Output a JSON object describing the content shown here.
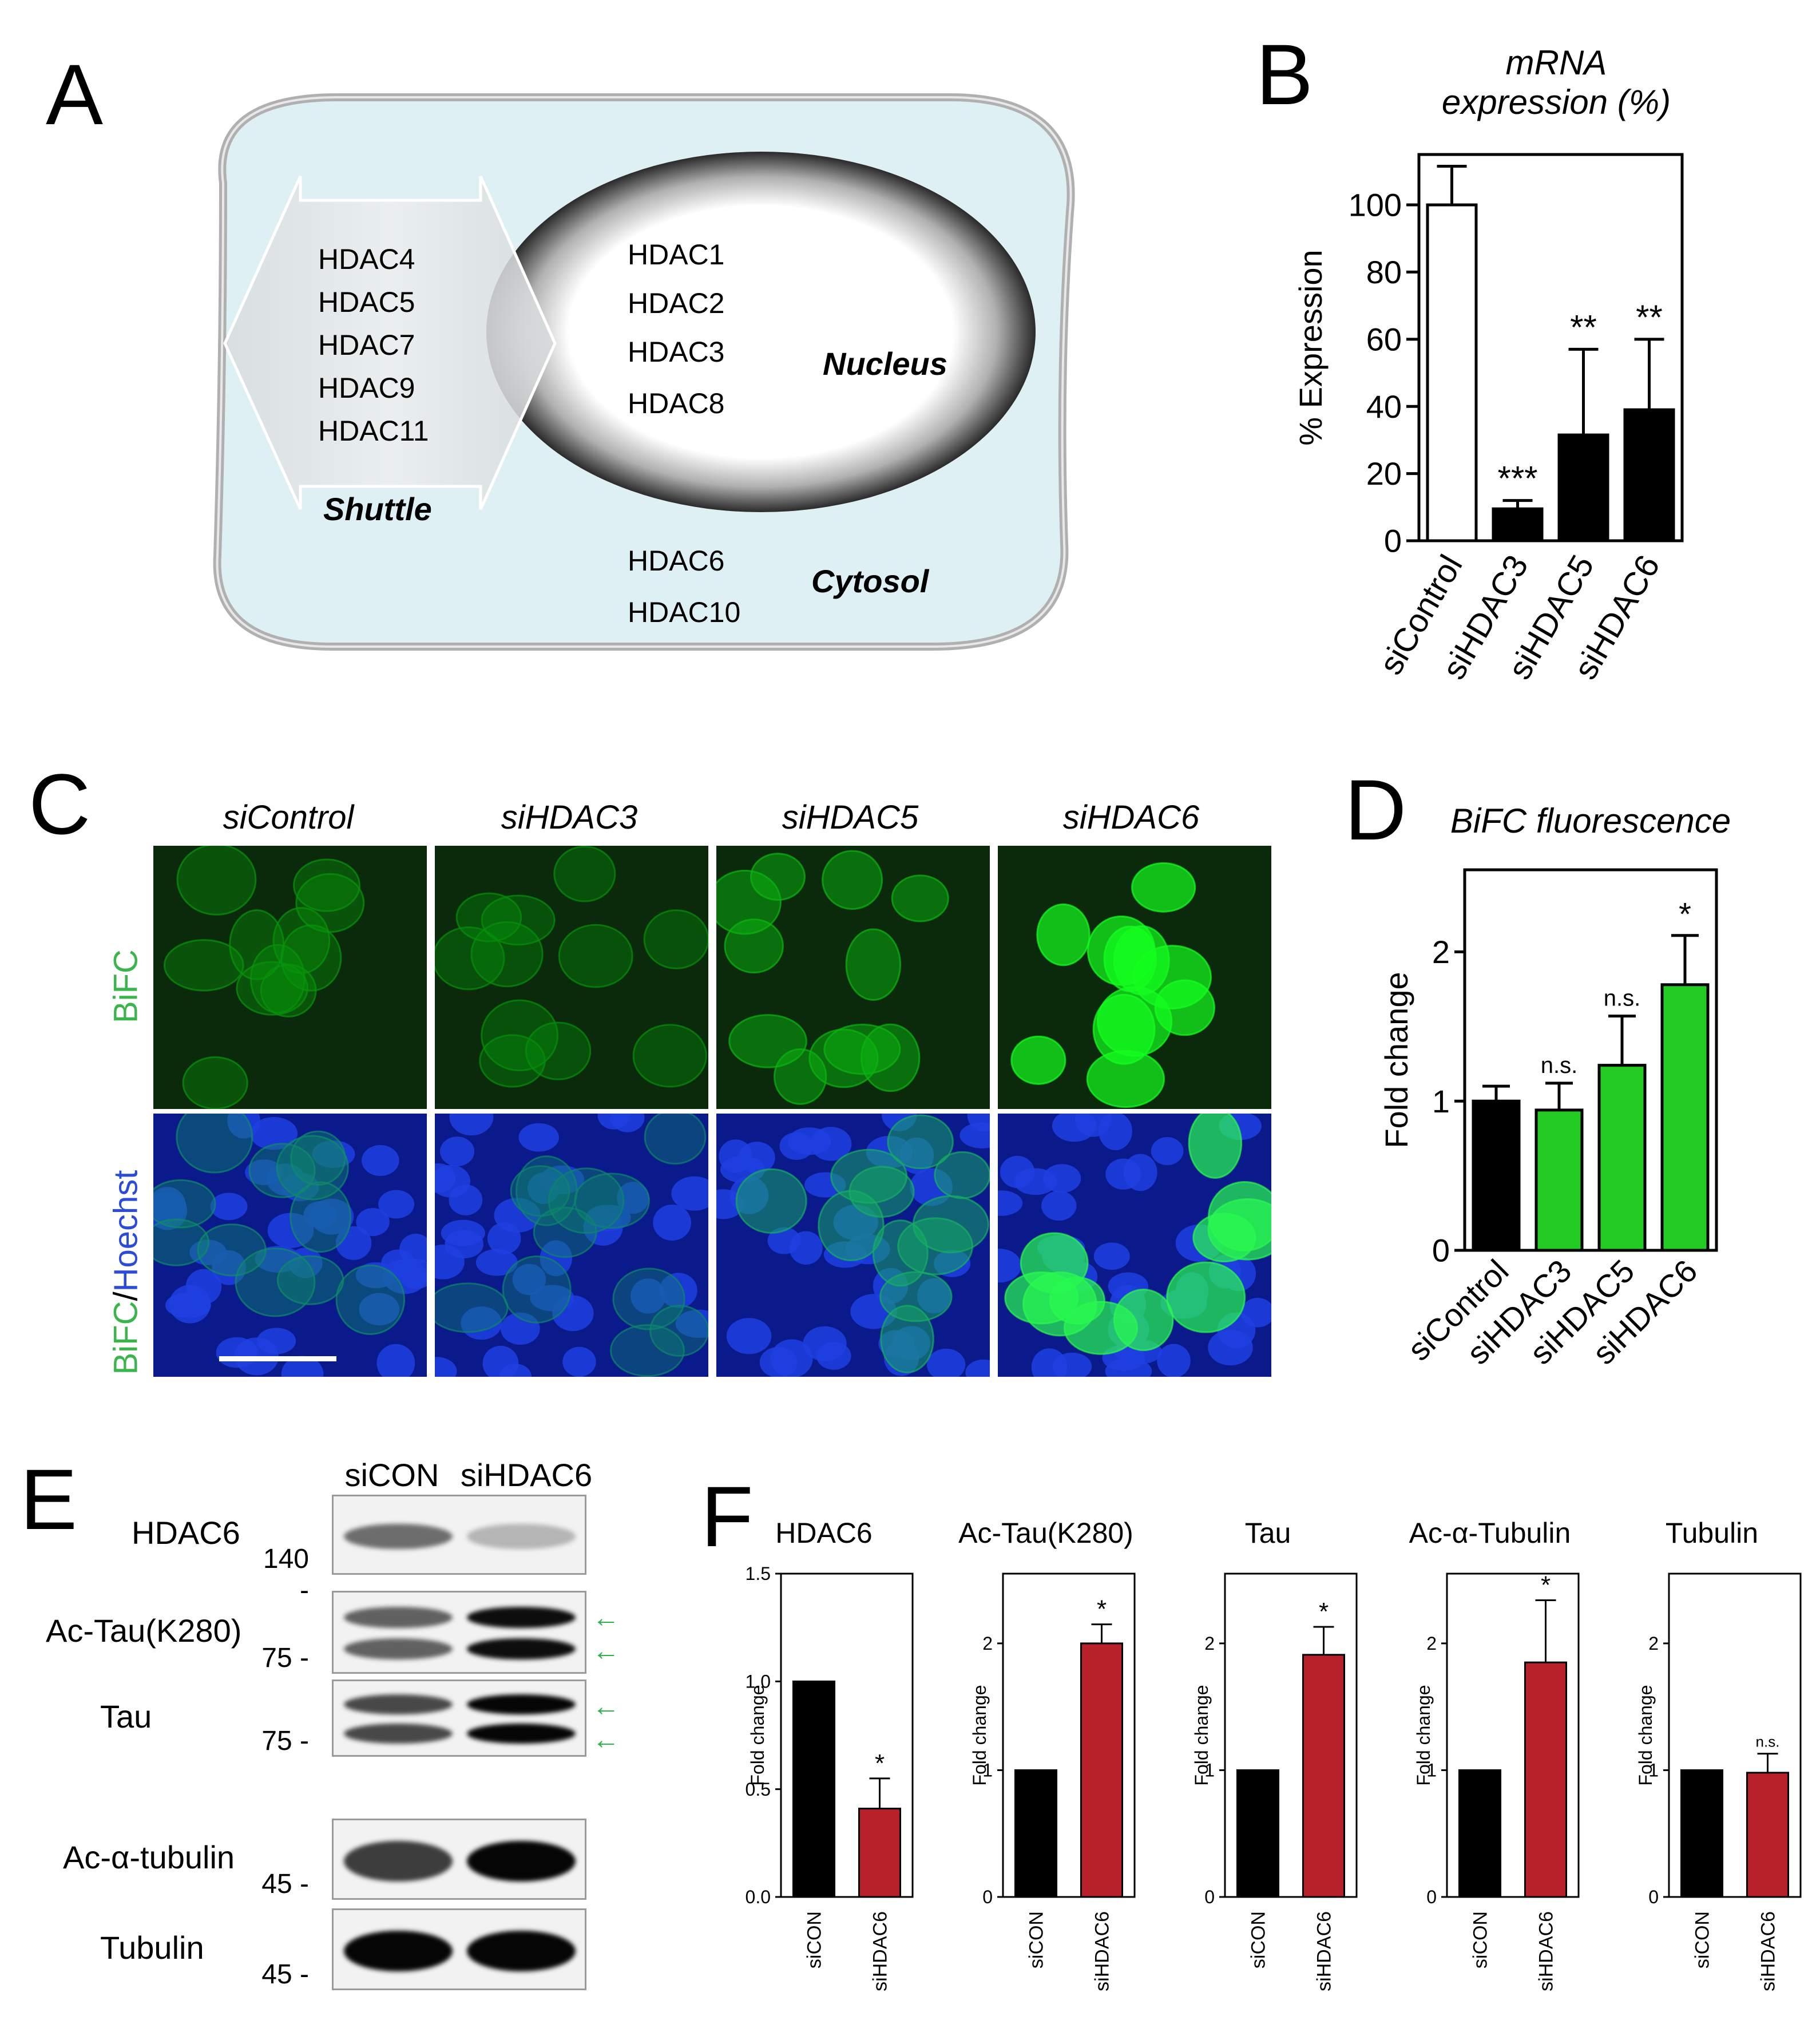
{
  "panels": {
    "A": "A",
    "B": "B",
    "C": "C",
    "D": "D",
    "E": "E",
    "F": "F"
  },
  "diagram": {
    "shuttle_hdacs": [
      "HDAC4",
      "HDAC5",
      "HDAC7",
      "HDAC9",
      "HDAC11"
    ],
    "nucleus_hdacs": [
      "HDAC1",
      "HDAC2",
      "HDAC3",
      "HDAC8"
    ],
    "cytosol_hdacs": [
      "HDAC6",
      "HDAC10"
    ],
    "shuttle_label": "Shuttle",
    "nucleus_label": "Nucleus",
    "cytosol_label": "Cytosol",
    "colors": {
      "cell_fill": "#dff0f4",
      "cell_border": "#b5b5b5",
      "nucleus_ring": "#3a3a3a",
      "arrow": "#e4e4e4"
    }
  },
  "imaging": {
    "columns": [
      "siControl",
      "siHDAC3",
      "siHDAC5",
      "siHDAC6"
    ],
    "row1_label": "BiFC",
    "row2_label_a": "BiFC",
    "row2_label_sep": "/",
    "row2_label_b": "Hoechst",
    "colors": {
      "bifc": "#39b54a",
      "hoechst": "#2b4bd8"
    }
  },
  "western": {
    "columns": [
      "siCON",
      "siHDAC6"
    ],
    "rows": [
      {
        "label": "HDAC6",
        "mw": "140",
        "arrows": 0
      },
      {
        "label": "Ac-Tau(K280)",
        "mw": "75",
        "arrows": 2
      },
      {
        "label": "Tau",
        "mw": "75",
        "arrows": 2
      },
      {
        "label": "Ac-α-tubulin",
        "mw": "45",
        "arrows": 0
      },
      {
        "label": "Tubulin",
        "mw": "45",
        "arrows": 0
      }
    ],
    "arrow_color": "#2eb34a"
  },
  "chart_data": [
    {
      "panel": "B",
      "type": "bar",
      "title": "mRNA expression (%)",
      "title_line1": "mRNA",
      "title_line2": "expression (%)",
      "ylabel": "% Expression",
      "xlabel": "",
      "categories": [
        "siControl",
        "siHDAC3",
        "siHDAC5",
        "siHDAC6"
      ],
      "values": [
        100,
        9.5,
        31.5,
        39
      ],
      "errors": [
        11.5,
        2.5,
        25.5,
        21
      ],
      "annotations": [
        "",
        "***",
        "**",
        "**"
      ],
      "fills": [
        "#ffffff",
        "#000000",
        "#000000",
        "#000000"
      ],
      "ylim": [
        0,
        115
      ],
      "yticks": [
        0,
        20,
        40,
        60,
        80,
        100
      ]
    },
    {
      "panel": "D",
      "type": "bar",
      "title": "BiFC fluorescence",
      "ylabel": "Fold change",
      "xlabel": "",
      "categories": [
        "siControl",
        "siHDAC3",
        "siHDAC5",
        "siHDAC6"
      ],
      "values": [
        1.0,
        0.94,
        1.24,
        1.78
      ],
      "errors": [
        0.1,
        0.18,
        0.33,
        0.33
      ],
      "annotations": [
        "",
        "n.s.",
        "n.s.",
        "*"
      ],
      "fills": [
        "#000000",
        "#22cc22",
        "#22cc22",
        "#22cc22"
      ],
      "ylim": [
        0,
        2.55
      ],
      "yticks": [
        0,
        1,
        2
      ]
    },
    {
      "panel": "F",
      "type": "bar",
      "title": "HDAC6",
      "ylabel": "Fold change",
      "categories": [
        "siCON",
        "siHDAC6"
      ],
      "values": [
        1.0,
        0.41
      ],
      "errors": [
        0,
        0.14
      ],
      "annotations": [
        "",
        "*"
      ],
      "fills": [
        "#000000",
        "#b8202a"
      ],
      "ylim": [
        0,
        1.5
      ],
      "yticks": [
        0.0,
        0.5,
        1.0,
        1.5
      ],
      "tick_labels": [
        "0.0",
        "0.5",
        "1.0",
        "1.5"
      ]
    },
    {
      "panel": "F",
      "type": "bar",
      "title": "Ac-Tau(K280)",
      "ylabel": "Fold change",
      "categories": [
        "siCON",
        "siHDAC6"
      ],
      "values": [
        1.0,
        2.0
      ],
      "errors": [
        0,
        0.15
      ],
      "annotations": [
        "",
        "*"
      ],
      "fills": [
        "#000000",
        "#b8202a"
      ],
      "ylim": [
        0,
        2.55
      ],
      "yticks": [
        0,
        1,
        2
      ],
      "tick_labels": [
        "0",
        "1",
        "2"
      ]
    },
    {
      "panel": "F",
      "type": "bar",
      "title": "Tau",
      "ylabel": "Fold change",
      "categories": [
        "siCON",
        "siHDAC6"
      ],
      "values": [
        1.0,
        1.91
      ],
      "errors": [
        0,
        0.22
      ],
      "annotations": [
        "",
        "*"
      ],
      "fills": [
        "#000000",
        "#b8202a"
      ],
      "ylim": [
        0,
        2.55
      ],
      "yticks": [
        0,
        1,
        2
      ],
      "tick_labels": [
        "0",
        "1",
        "2"
      ]
    },
    {
      "panel": "F",
      "type": "bar",
      "title": "Ac-α-Tubulin",
      "ylabel": "Fold change",
      "categories": [
        "siCON",
        "siHDAC6"
      ],
      "values": [
        1.0,
        1.85
      ],
      "errors": [
        0,
        0.49
      ],
      "annotations": [
        "",
        "*"
      ],
      "fills": [
        "#000000",
        "#b8202a"
      ],
      "ylim": [
        0,
        2.55
      ],
      "yticks": [
        0,
        1,
        2
      ],
      "tick_labels": [
        "0",
        "1",
        "2"
      ]
    },
    {
      "panel": "F",
      "type": "bar",
      "title": "Tubulin",
      "ylabel": "Fold change",
      "categories": [
        "siCON",
        "siHDAC6"
      ],
      "values": [
        1.0,
        0.98
      ],
      "errors": [
        0,
        0.15
      ],
      "annotations": [
        "",
        "n.s."
      ],
      "fills": [
        "#000000",
        "#b8202a"
      ],
      "ylim": [
        0,
        2.55
      ],
      "yticks": [
        0,
        1,
        2
      ],
      "tick_labels": [
        "0",
        "1",
        "2"
      ]
    }
  ]
}
